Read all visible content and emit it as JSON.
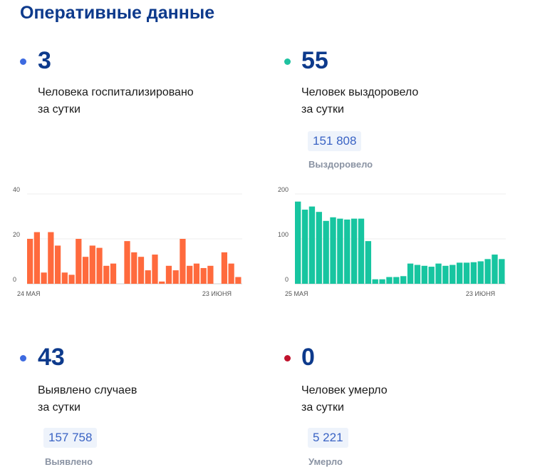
{
  "page_title": "Оперативные данные",
  "stats": {
    "hospitalized": {
      "value": "3",
      "line1": "Человека госпитализировано",
      "line2": "за сутки",
      "color": "#3d6ae0"
    },
    "recovered": {
      "value": "55",
      "line1": "Человек выздоровело",
      "line2": "за сутки",
      "total": "151 808",
      "total_label": "Выздоровело",
      "color": "#1ec2a0"
    },
    "cases": {
      "value": "43",
      "line1": "Выявлено случаев",
      "line2": "за сутки",
      "total": "157 758",
      "total_label": "Выявлено",
      "color": "#3d6ae0"
    },
    "deaths": {
      "value": "0",
      "line1": "Человек умерло",
      "line2": "за сутки",
      "total": "5 221",
      "total_label": "Умерло",
      "color": "#c0122c"
    }
  },
  "chart_data": [
    {
      "type": "bar",
      "x_start_label": "24 МАЯ",
      "x_end_label": "23 ИЮНЯ",
      "ylim": [
        0,
        40
      ],
      "yticks": [
        0,
        20,
        40
      ],
      "grid": true,
      "color": "#ff6a3d",
      "values": [
        20,
        23,
        5,
        23,
        17,
        5,
        4,
        20,
        12,
        17,
        16,
        8,
        9,
        0,
        19,
        14,
        12,
        6,
        13,
        1,
        8,
        6,
        20,
        8,
        9,
        7,
        8,
        0,
        14,
        9,
        3
      ]
    },
    {
      "type": "bar",
      "x_start_label": "25 МАЯ",
      "x_end_label": "23 ИЮНЯ",
      "ylim": [
        0,
        200
      ],
      "yticks": [
        0,
        100,
        200
      ],
      "grid": true,
      "color": "#17c5a0",
      "values": [
        183,
        165,
        172,
        160,
        140,
        148,
        145,
        143,
        145,
        145,
        95,
        10,
        10,
        15,
        15,
        17,
        45,
        42,
        40,
        38,
        45,
        40,
        42,
        47,
        47,
        48,
        50,
        55,
        65,
        55
      ]
    }
  ]
}
